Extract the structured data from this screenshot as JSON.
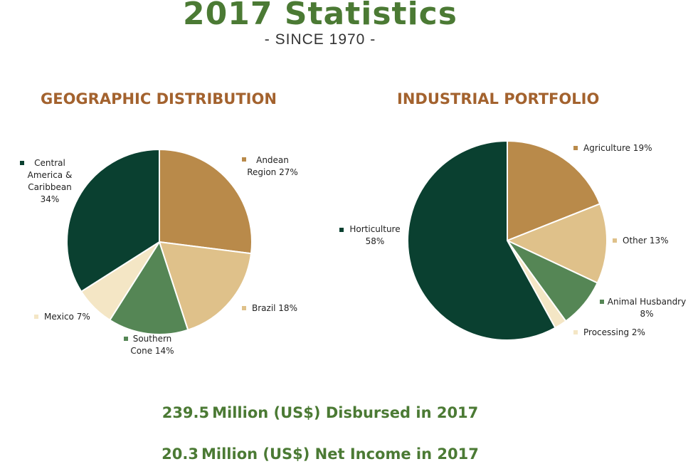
{
  "header": {
    "title": "2017 Statistics",
    "subtitle": "- SINCE 1970 -"
  },
  "colors": {
    "dark_green": "#0a4030",
    "tan": "#b98a4a",
    "light_tan": "#dfc18a",
    "mid_green": "#558655",
    "cream": "#f4e6c5",
    "title_green": "#4b7a34",
    "section_brown": "#a3622e"
  },
  "chart_data": [
    {
      "type": "pie",
      "title": "GEOGRAPHIC DISTRIBUTION",
      "slices": [
        {
          "label_lines": [
            "Andean",
            "Region 27%"
          ],
          "name": "Andean Region",
          "value": 27,
          "color": "#b98a4a"
        },
        {
          "label_lines": [
            "Brazil 18%"
          ],
          "name": "Brazil",
          "value": 18,
          "color": "#dfc18a"
        },
        {
          "label_lines": [
            "Southern",
            "Cone 14%"
          ],
          "name": "Southern Cone",
          "value": 14,
          "color": "#558655"
        },
        {
          "label_lines": [
            "Mexico 7%"
          ],
          "name": "Mexico",
          "value": 7,
          "color": "#f4e6c5"
        },
        {
          "label_lines": [
            "Central",
            "America &",
            "Caribbean",
            "34%"
          ],
          "name": "Central America & Caribbean",
          "value": 34,
          "color": "#0a4030"
        }
      ]
    },
    {
      "type": "pie",
      "title": "INDUSTRIAL PORTFOLIO",
      "slices": [
        {
          "label_lines": [
            "Agriculture 19%"
          ],
          "name": "Agriculture",
          "value": 19,
          "color": "#b98a4a"
        },
        {
          "label_lines": [
            "Other 13%"
          ],
          "name": "Other",
          "value": 13,
          "color": "#dfc18a"
        },
        {
          "label_lines": [
            "Animal Husbandry",
            "8%"
          ],
          "name": "Animal Husbandry",
          "value": 8,
          "color": "#558655"
        },
        {
          "label_lines": [
            "Processing  2%"
          ],
          "name": "Processing",
          "value": 2,
          "color": "#f4e6c5"
        },
        {
          "label_lines": [
            "Horticulture",
            "58%"
          ],
          "name": "Horticulture",
          "value": 58,
          "color": "#0a4030"
        }
      ]
    }
  ],
  "footer": {
    "disbursed_amount": "239.5",
    "disbursed_text": "Million (US$) Disbursed in 2017",
    "income_amount": "20.3",
    "income_text": "Million (US$) Net Income in 2017"
  }
}
